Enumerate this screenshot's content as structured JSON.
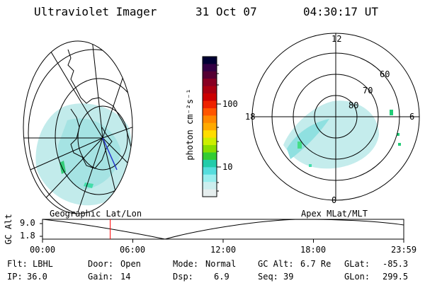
{
  "header": {
    "instrument": "Ultraviolet Imager",
    "date": "31 Oct 07",
    "time": "04:30:17 UT"
  },
  "colorbar": {
    "label": "photon cm⁻²s⁻¹",
    "ticks": [
      "100",
      "10"
    ],
    "colors": [
      "#000033",
      "#330044",
      "#550033",
      "#880022",
      "#aa0011",
      "#cc0000",
      "#ee2200",
      "#ff5500",
      "#ff8800",
      "#ffaa00",
      "#ffdd00",
      "#ccee00",
      "#88dd00",
      "#33cc33",
      "#22ccaa",
      "#55dddd",
      "#99eeee",
      "#cceeee",
      "#e6eeee"
    ]
  },
  "left_map": {
    "caption": "Geographic Lat/Lon"
  },
  "right_map": {
    "caption": "Apex MLat/MLT",
    "mlt_labels": {
      "top": "12",
      "left": "18",
      "right": "6",
      "bottom": "0"
    },
    "lat_labels": [
      "60",
      "70",
      "80"
    ]
  },
  "timeline": {
    "ylabel": "GC Alt",
    "y_ticks": [
      "9.0",
      "1.8"
    ],
    "x_ticks": [
      "00:00",
      "06:00",
      "12:00",
      "18:00",
      "23:59"
    ],
    "marker_hour": 4.5
  },
  "info": {
    "flt_label": "Flt:",
    "flt": "LBHL",
    "ip_label": "IP:",
    "ip": "36.0",
    "door_label": "Door:",
    "door": "Open",
    "gain_label": "Gain:",
    "gain": "14",
    "mode_label": "Mode:",
    "mode": "Normal",
    "dsp_label": "Dsp:",
    "dsp": "6.9",
    "gcalt_label": "GC Alt:",
    "gcalt": "6.7 Re",
    "seq_label": "Seq:",
    "seq": "39",
    "glat_label": "GLat:",
    "glat": "-85.3",
    "glon_label": "GLon:",
    "glon": "299.5"
  }
}
